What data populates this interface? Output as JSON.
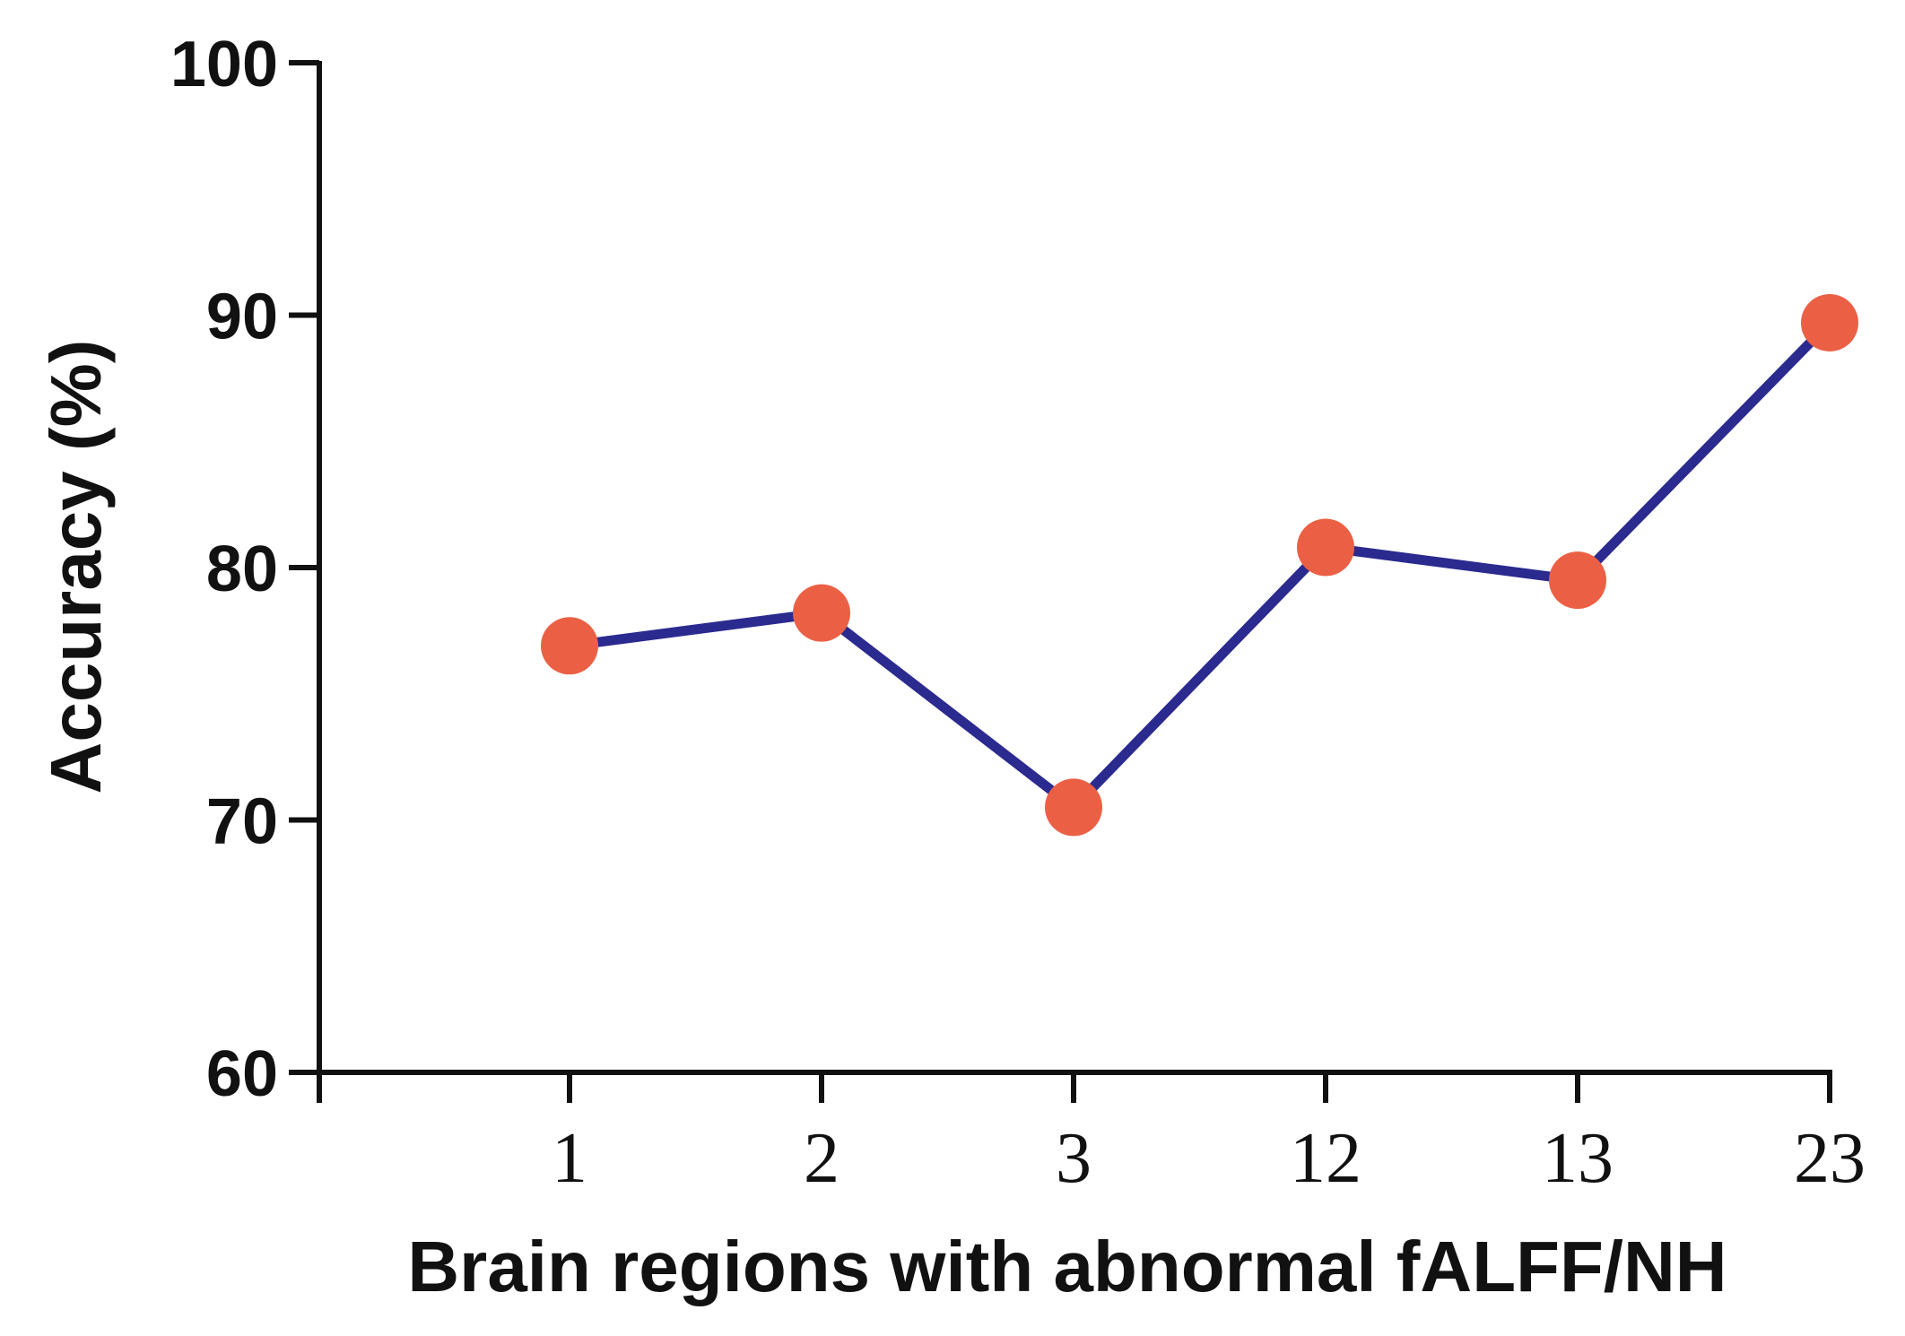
{
  "chart_data": {
    "type": "line",
    "title": "",
    "xlabel": "Brain regions with abnormal fALFF/NH",
    "ylabel": "Accuracy (%)",
    "categories": [
      "1",
      "2",
      "3",
      "12",
      "13",
      "23"
    ],
    "series": [
      {
        "name": "",
        "values": [
          76.9,
          78.2,
          70.5,
          80.8,
          79.5,
          89.7
        ]
      }
    ],
    "ylim": [
      60,
      100
    ],
    "yticks": [
      60,
      70,
      80,
      90,
      100
    ],
    "grid": false,
    "legend": "none",
    "colors": {
      "line": "#2b2a8f",
      "marker": "#eb6045",
      "axis": "#111111"
    }
  }
}
